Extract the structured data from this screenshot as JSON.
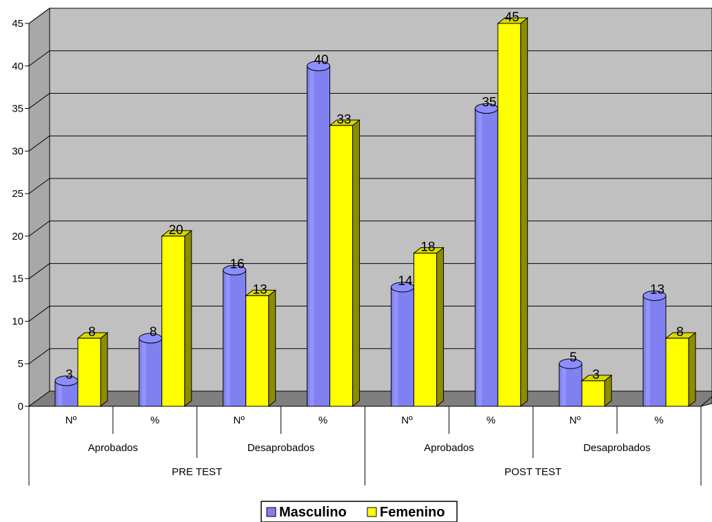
{
  "chart_data": {
    "type": "bar",
    "title": "",
    "xlabel": "",
    "ylabel": "",
    "ylim": [
      0,
      45
    ],
    "yticks": [
      0,
      5,
      10,
      15,
      20,
      25,
      30,
      35,
      40,
      45
    ],
    "grid": true,
    "legend_position": "bottom",
    "categories": [
      "Nº",
      "%",
      "Nº",
      "%",
      "Nº",
      "%",
      "Nº",
      "%"
    ],
    "category_groups": [
      "Aprobados",
      "Desaprobados",
      "Aprobados",
      "Desaprobados"
    ],
    "category_supergroups": [
      "PRE TEST",
      "POST TEST"
    ],
    "series": [
      {
        "name": "Masculino",
        "color": "#8080f0",
        "values": [
          3,
          8,
          16,
          40,
          14,
          35,
          5,
          13
        ]
      },
      {
        "name": "Femenino",
        "color": "#ffff00",
        "values": [
          8,
          20,
          13,
          33,
          18,
          45,
          3,
          8
        ]
      }
    ],
    "data_labels": {
      "Masculino": [
        "3",
        "8",
        "16",
        "40",
        "14",
        "35",
        "5",
        "13"
      ],
      "Femenino": [
        "8",
        "20",
        "13",
        "33",
        "18",
        "45",
        "3",
        "8"
      ]
    }
  },
  "colors": {
    "plot_wall": "#c0c0c0",
    "plot_floor": "#7f7f7f",
    "gridline": "#000000"
  }
}
